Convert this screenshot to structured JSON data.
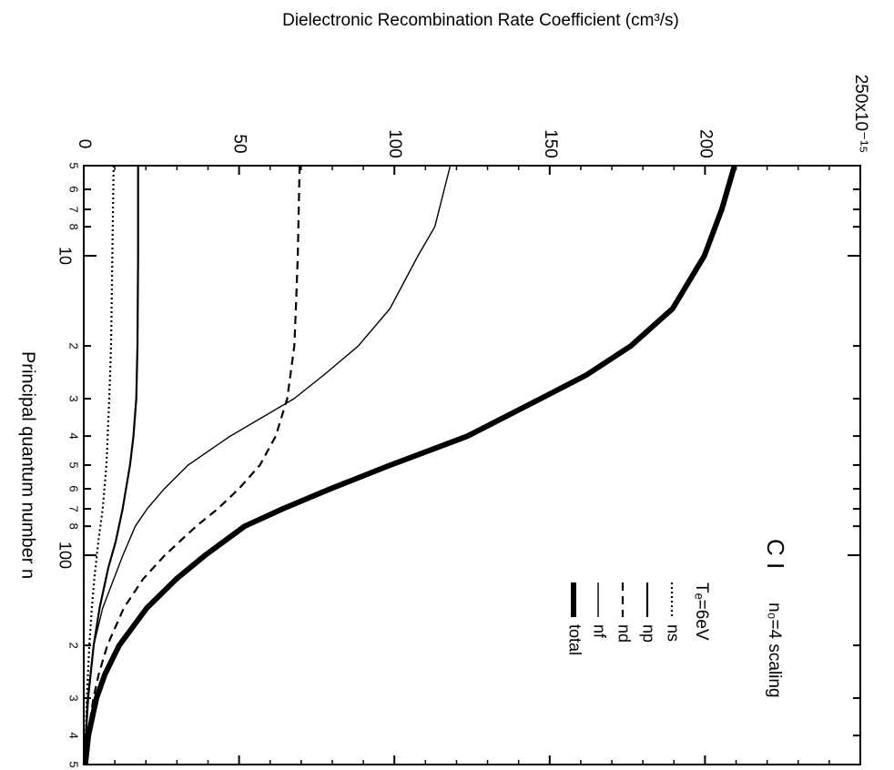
{
  "chart_data": {
    "type": "line",
    "title": "Dielectronic Recombination Rate Coefficient (cm³/s)",
    "xlabel": "Principal quantum number n",
    "ylabel_scale": "250x10⁻¹⁵",
    "x_scale": "log",
    "xlim": [
      5,
      500
    ],
    "ylim": [
      0,
      250
    ],
    "x_tick_labels": [
      {
        "value": 5,
        "label": "5"
      },
      {
        "value": 6,
        "label": "6"
      },
      {
        "value": 7,
        "label": "7"
      },
      {
        "value": 8,
        "label": "8"
      },
      {
        "value": 10,
        "label": "10"
      },
      {
        "value": 20,
        "label": "2"
      },
      {
        "value": 30,
        "label": "3"
      },
      {
        "value": 40,
        "label": "4"
      },
      {
        "value": 50,
        "label": "5"
      },
      {
        "value": 60,
        "label": "6"
      },
      {
        "value": 70,
        "label": "7"
      },
      {
        "value": 80,
        "label": "8"
      },
      {
        "value": 100,
        "label": "100"
      },
      {
        "value": 200,
        "label": "2"
      },
      {
        "value": 300,
        "label": "3"
      },
      {
        "value": 400,
        "label": "4"
      },
      {
        "value": 500,
        "label": "5"
      }
    ],
    "y_ticks": [
      0,
      50,
      100,
      150,
      200
    ],
    "y_tick_labels": [
      "0",
      "50",
      "100",
      "150",
      "200"
    ],
    "annotations": {
      "ion": "C I",
      "scaling": "n₀=4 scaling",
      "temperature": "Tₑ=6eV"
    },
    "legend": "right-center",
    "series": [
      {
        "name": "ns",
        "style": "dotted",
        "x": [
          5,
          10,
          20,
          30,
          50,
          70,
          90,
          120,
          150,
          200,
          300,
          400,
          500
        ],
        "y": [
          9.6,
          9.2,
          8.8,
          8.2,
          7.3,
          6.1,
          4.7,
          3.4,
          2.6,
          1.8,
          1.0,
          0.6,
          0.3
        ]
      },
      {
        "name": "np",
        "style": "solid",
        "x": [
          5,
          10,
          20,
          30,
          40,
          50,
          70,
          90,
          110,
          150,
          200,
          300,
          400,
          500
        ],
        "y": [
          17.5,
          17.5,
          17.3,
          16.9,
          16.0,
          14.9,
          12.5,
          10.3,
          7.9,
          5.1,
          3.2,
          1.4,
          0.7,
          0.3
        ]
      },
      {
        "name": "nd",
        "style": "dashed",
        "x": [
          5,
          10,
          15,
          20,
          30,
          40,
          50,
          60,
          70,
          80,
          100,
          120,
          150,
          200,
          250,
          300,
          400,
          500
        ],
        "y": [
          69.5,
          68.9,
          68.3,
          67.8,
          65.5,
          61.8,
          56.7,
          49.9,
          43.1,
          36.2,
          26.1,
          19.1,
          12.9,
          7.6,
          4.8,
          3.1,
          1.3,
          0.3
        ]
      },
      {
        "name": "nf",
        "style": "thin-solid",
        "x": [
          5,
          8,
          10,
          15,
          20,
          25,
          30,
          40,
          50,
          60,
          70,
          80,
          100,
          150,
          200,
          300,
          400,
          500
        ],
        "y": [
          118,
          113,
          107.6,
          98.6,
          88.4,
          77.3,
          67.7,
          47.2,
          33.6,
          25.9,
          20.4,
          16.6,
          12.6,
          6.1,
          3.2,
          1.2,
          0.6,
          0.3
        ]
      },
      {
        "name": "total",
        "style": "thick-solid",
        "x": [
          5,
          7,
          10,
          15,
          20,
          25,
          30,
          40,
          50,
          60,
          70,
          80,
          100,
          120,
          150,
          200,
          250,
          300,
          400,
          500
        ],
        "y": [
          209.5,
          205.4,
          199.8,
          189.6,
          176.1,
          161.8,
          147.1,
          123.6,
          98.7,
          79.4,
          64.0,
          51.8,
          39.1,
          29.8,
          20.3,
          11.4,
          6.8,
          4.1,
          1.5,
          0.5
        ]
      }
    ]
  }
}
